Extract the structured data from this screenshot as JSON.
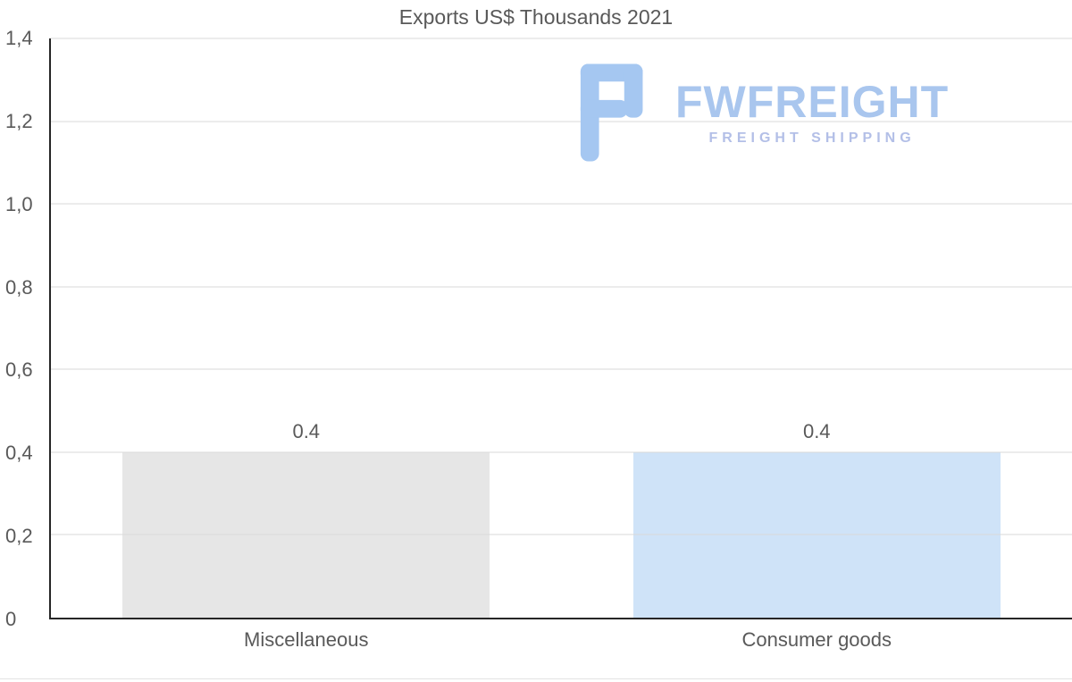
{
  "title": "Exports US$ Thousands 2021",
  "watermark": {
    "brand": "FWFREIGHT",
    "tagline": "FREIGHT SHIPPING",
    "brand_color": "#a9c6ee",
    "tagline_color": "#b3bfe7",
    "icon_color": "#a5c7f1"
  },
  "colors": {
    "text": "#595959",
    "gridline": "#d9d9d9",
    "axis": "#262626"
  },
  "chart_data": {
    "type": "bar",
    "title": "Exports US$ Thousands 2021",
    "categories": [
      "Miscellaneous",
      "Consumer goods"
    ],
    "values": [
      0.4,
      0.4
    ],
    "data_labels": [
      "0.4",
      "0.4"
    ],
    "bar_colors": [
      "#e6e6e6",
      "#cfe3f8"
    ],
    "xlabel": "",
    "ylabel": "",
    "ylim": [
      0,
      1.4
    ],
    "ytick_step": 0.2,
    "ytick_labels": [
      "0",
      "0,2",
      "0,4",
      "0,6",
      "0,8",
      "1,0",
      "1,2",
      "1,4"
    ],
    "grid": true,
    "legend": "none"
  }
}
